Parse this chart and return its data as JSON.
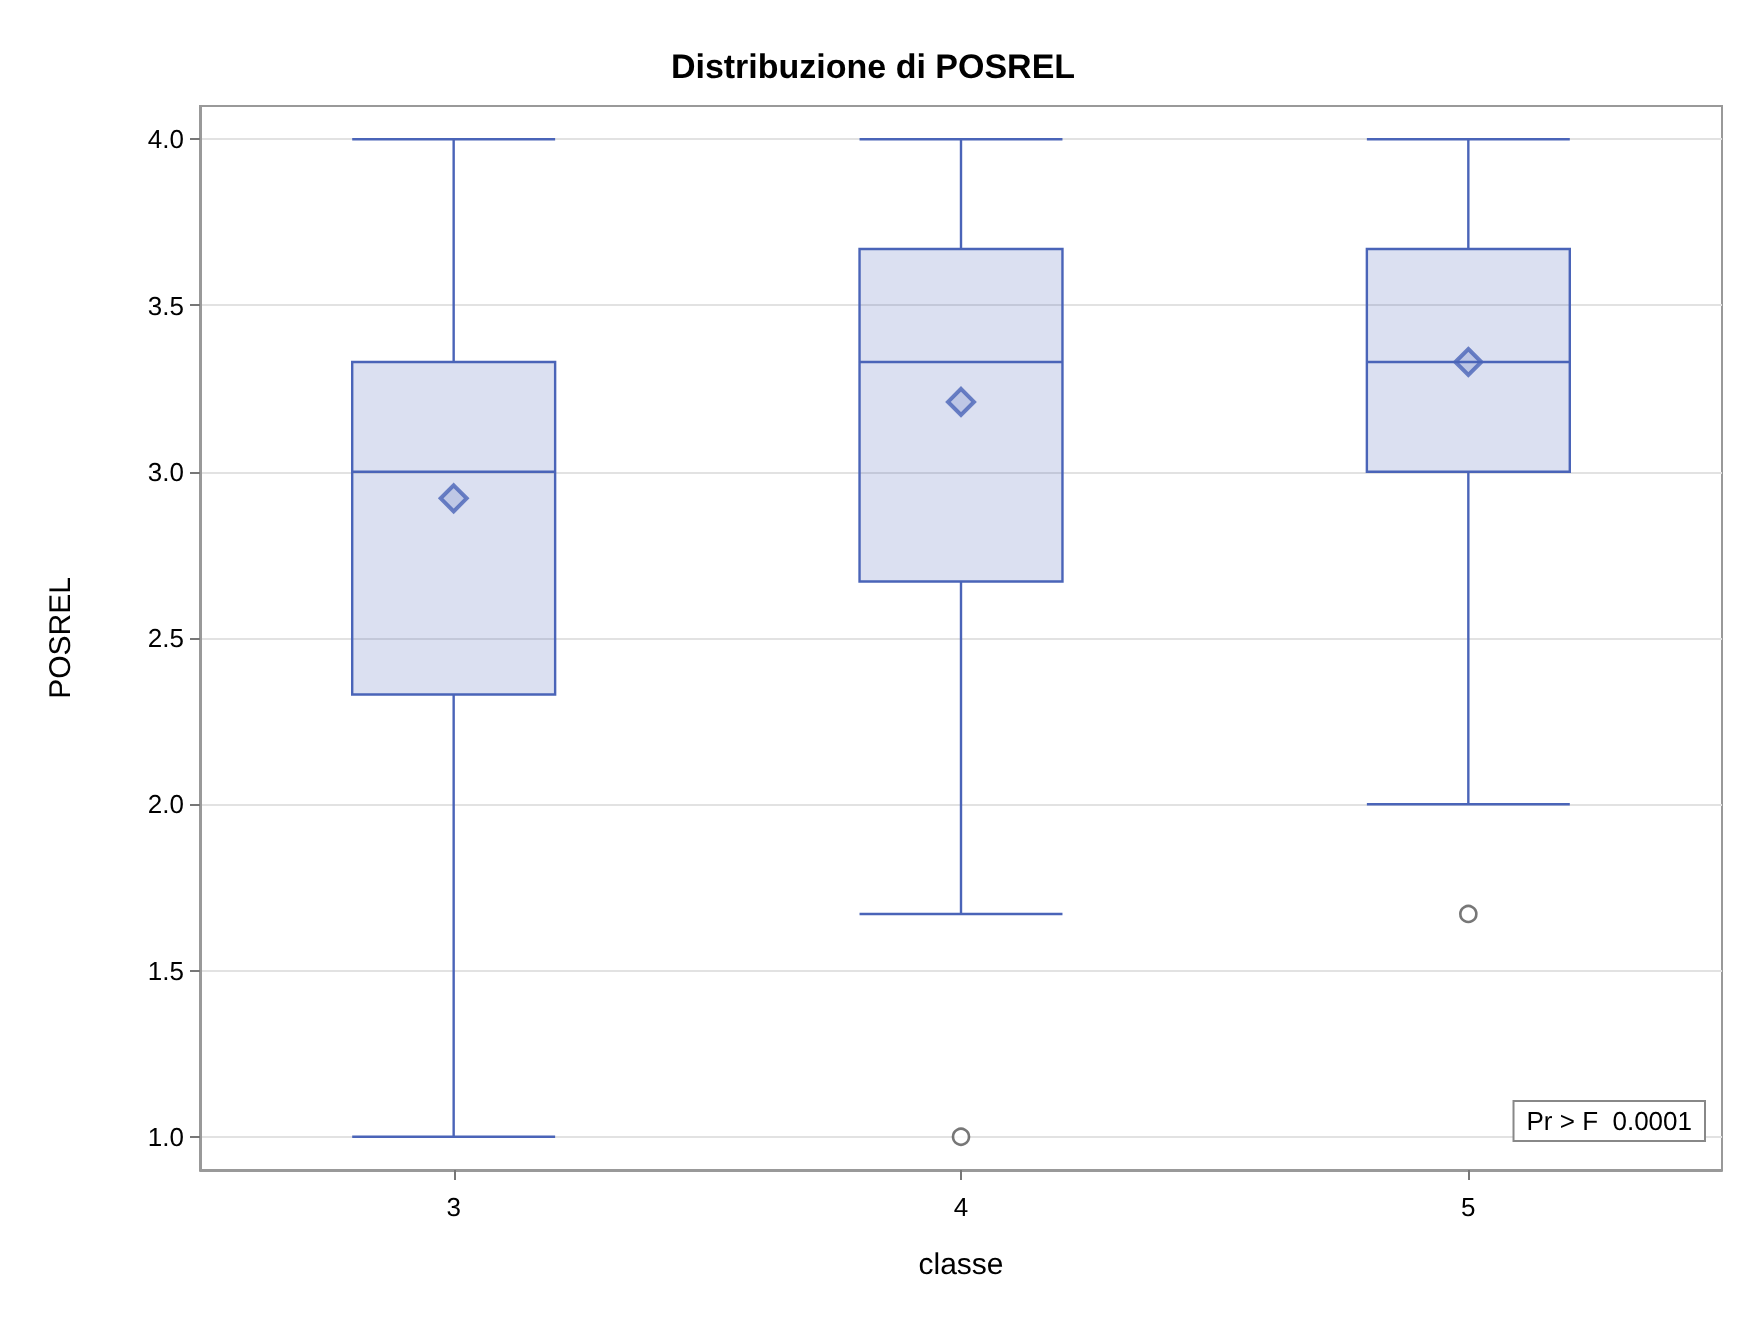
{
  "chart_data": {
    "type": "box",
    "title": "Distribuzione di POSREL",
    "xlabel": "classe",
    "ylabel": "POSREL",
    "categories": [
      "3",
      "4",
      "5"
    ],
    "color": "#4a64b8",
    "boxes": [
      {
        "low": 1.0,
        "q1": 2.33,
        "median": 3.0,
        "q3": 3.33,
        "high": 4.0,
        "mean": 2.92
      },
      {
        "low": 1.67,
        "q1": 2.67,
        "median": 3.33,
        "q3": 3.67,
        "high": 4.0,
        "mean": 3.21,
        "outliers": [
          1.0
        ]
      },
      {
        "low": 2.0,
        "q1": 3.0,
        "median": 3.33,
        "q3": 3.67,
        "high": 4.0,
        "mean": 3.33,
        "outliers": [
          1.67
        ]
      }
    ],
    "ylim": [
      0.9,
      4.1
    ],
    "yticks": [
      {
        "value": 1,
        "label": "1.0"
      },
      {
        "value": 1.5,
        "label": "1.5"
      },
      {
        "value": 2,
        "label": "2.0"
      },
      {
        "value": 2.5,
        "label": "2.5"
      },
      {
        "value": 3,
        "label": "3.0"
      },
      {
        "value": 3.5,
        "label": "3.5"
      },
      {
        "value": 4,
        "label": "4.0"
      }
    ],
    "grid": "y",
    "marker": "diamond",
    "annotations": [
      "Pr > F  0.0001"
    ]
  }
}
